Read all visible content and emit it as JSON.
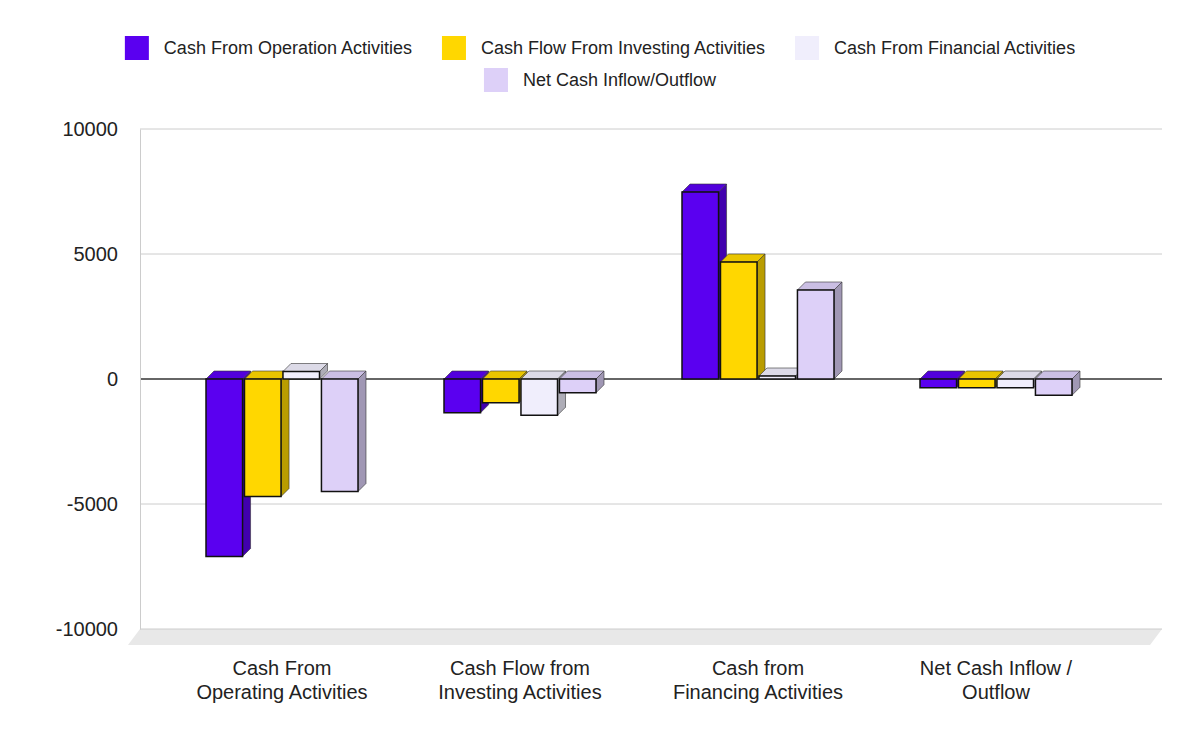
{
  "chart_data": {
    "type": "bar",
    "categories": [
      "Cash From Operating Activities",
      "Cash Flow from Investing Activities",
      "Cash from Financing Activities",
      "Net Cash Inflow / Outflow"
    ],
    "series": [
      {
        "name": "Cash From Operation Activities",
        "color": "#5a00f0",
        "values": [
          -7100,
          -1350,
          7480,
          -350
        ]
      },
      {
        "name": "Cash Flow From Investing Activities",
        "color": "#ffd700",
        "values": [
          -4700,
          -950,
          4680,
          -350
        ]
      },
      {
        "name": "Cash From Financial Activities",
        "color": "#f0eefc",
        "values": [
          300,
          -1450,
          120,
          -350
        ]
      },
      {
        "name": "Net Cash Inflow/Outflow",
        "color": "#ddd0f8",
        "values": [
          -4500,
          -550,
          3560,
          -650
        ]
      }
    ],
    "ylim": [
      -10000,
      10000
    ],
    "yticks": [
      -10000,
      -5000,
      0,
      5000,
      10000
    ],
    "grid": true,
    "legend": "top"
  }
}
